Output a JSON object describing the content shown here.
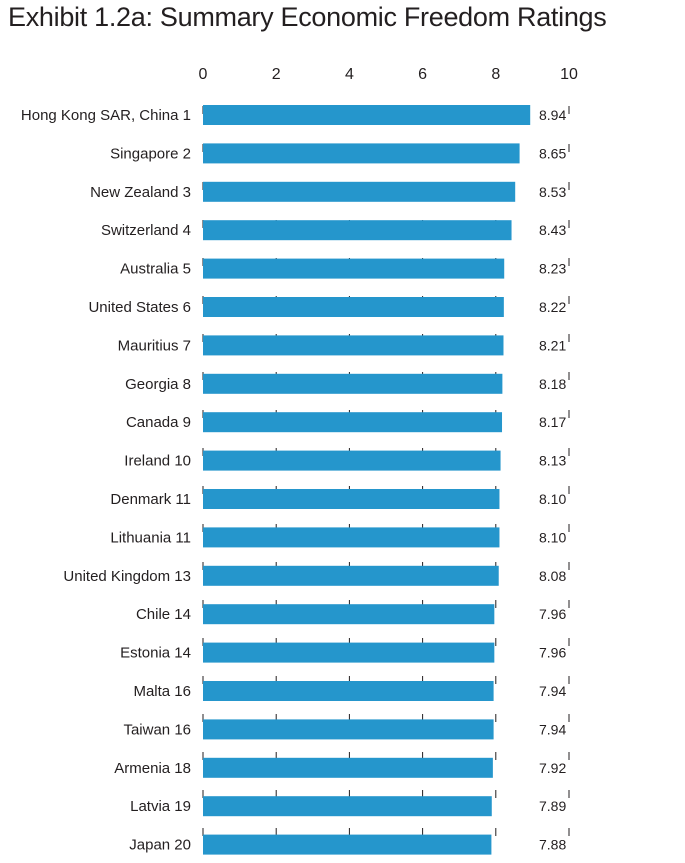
{
  "page": {
    "title": "Exhibit 1.2a: Summary Economic Freedom Ratings"
  },
  "chart_data": {
    "type": "bar",
    "orientation": "horizontal",
    "title": "Exhibit 1.2a: Summary Economic Freedom Ratings",
    "xlabel": "",
    "ylabel": "",
    "xlim": [
      0,
      10
    ],
    "xticks": [
      0,
      2,
      4,
      6,
      8,
      10
    ],
    "grid": "dashed vertical",
    "bar_color": "#2596cc",
    "categories": [
      "Hong Kong SAR, China",
      "Singapore",
      "New Zealand",
      "Switzerland",
      "Australia",
      "United States",
      "Mauritius",
      "Georgia",
      "Canada",
      "Ireland",
      "Denmark",
      "Lithuania",
      "United Kingdom",
      "Chile",
      "Estonia",
      "Malta",
      "Taiwan",
      "Armenia",
      "Latvia",
      "Japan"
    ],
    "ranks": [
      "1",
      "2",
      "3",
      "4",
      "5",
      "6",
      "7",
      "8",
      "9",
      "10",
      "11",
      "11",
      "13",
      "14",
      "14",
      "16",
      "16",
      "18",
      "19",
      "20"
    ],
    "values": [
      8.94,
      8.65,
      8.53,
      8.43,
      8.23,
      8.22,
      8.21,
      8.18,
      8.17,
      8.13,
      8.1,
      8.1,
      8.08,
      7.96,
      7.96,
      7.94,
      7.94,
      7.92,
      7.89,
      7.88
    ],
    "value_labels": [
      "8.94",
      "8.65",
      "8.53",
      "8.43",
      "8.23",
      "8.22",
      "8.21",
      "8.18",
      "8.17",
      "8.13",
      "8.10",
      "8.10",
      "8.08",
      "7.96",
      "7.96",
      "7.94",
      "7.94",
      "7.92",
      "7.89",
      "7.88"
    ]
  }
}
